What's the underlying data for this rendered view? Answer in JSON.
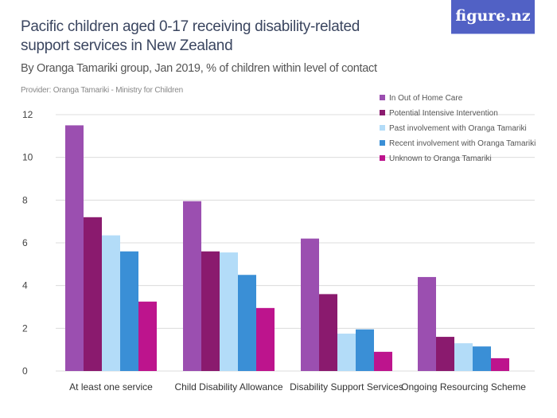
{
  "header": {
    "title": "Pacific children aged 0-17 receiving disability-related support services in New Zealand",
    "subtitle": "By Oranga Tamariki group, Jan 2019, % of children within level of contact",
    "provider": "Provider: Oranga Tamariki - Ministry for Children",
    "logo": "figure.nz"
  },
  "chart_data": {
    "type": "bar",
    "title": "Pacific children aged 0-17 receiving disability-related support services in New Zealand",
    "xlabel": "",
    "ylabel": "",
    "ylim": [
      0,
      12
    ],
    "yticks": [
      "0",
      "2",
      "4",
      "6",
      "8",
      "10",
      "12"
    ],
    "grid": true,
    "legend_position": "top-right",
    "categories": [
      "At least one service",
      "Child Disability Allowance",
      "Disability Support Services",
      "Ongoing Resourcing Scheme"
    ],
    "series": [
      {
        "name": "In Out of Home Care",
        "color": "#9b4fb0",
        "values": [
          11.5,
          7.95,
          6.2,
          4.4
        ]
      },
      {
        "name": "Potential Intensive Intervention",
        "color": "#8a1a6e",
        "values": [
          7.2,
          5.6,
          3.6,
          1.6
        ]
      },
      {
        "name": "Past involvement with Oranga Tamariki",
        "color": "#b3dcf8",
        "values": [
          6.35,
          5.55,
          1.75,
          1.3
        ]
      },
      {
        "name": "Recent involvement with Oranga Tamariki",
        "color": "#3a8fd6",
        "values": [
          5.6,
          4.5,
          1.95,
          1.15
        ]
      },
      {
        "name": "Unknown to Oranga Tamariki",
        "color": "#bd148d",
        "values": [
          3.25,
          2.95,
          0.9,
          0.6
        ]
      }
    ]
  }
}
